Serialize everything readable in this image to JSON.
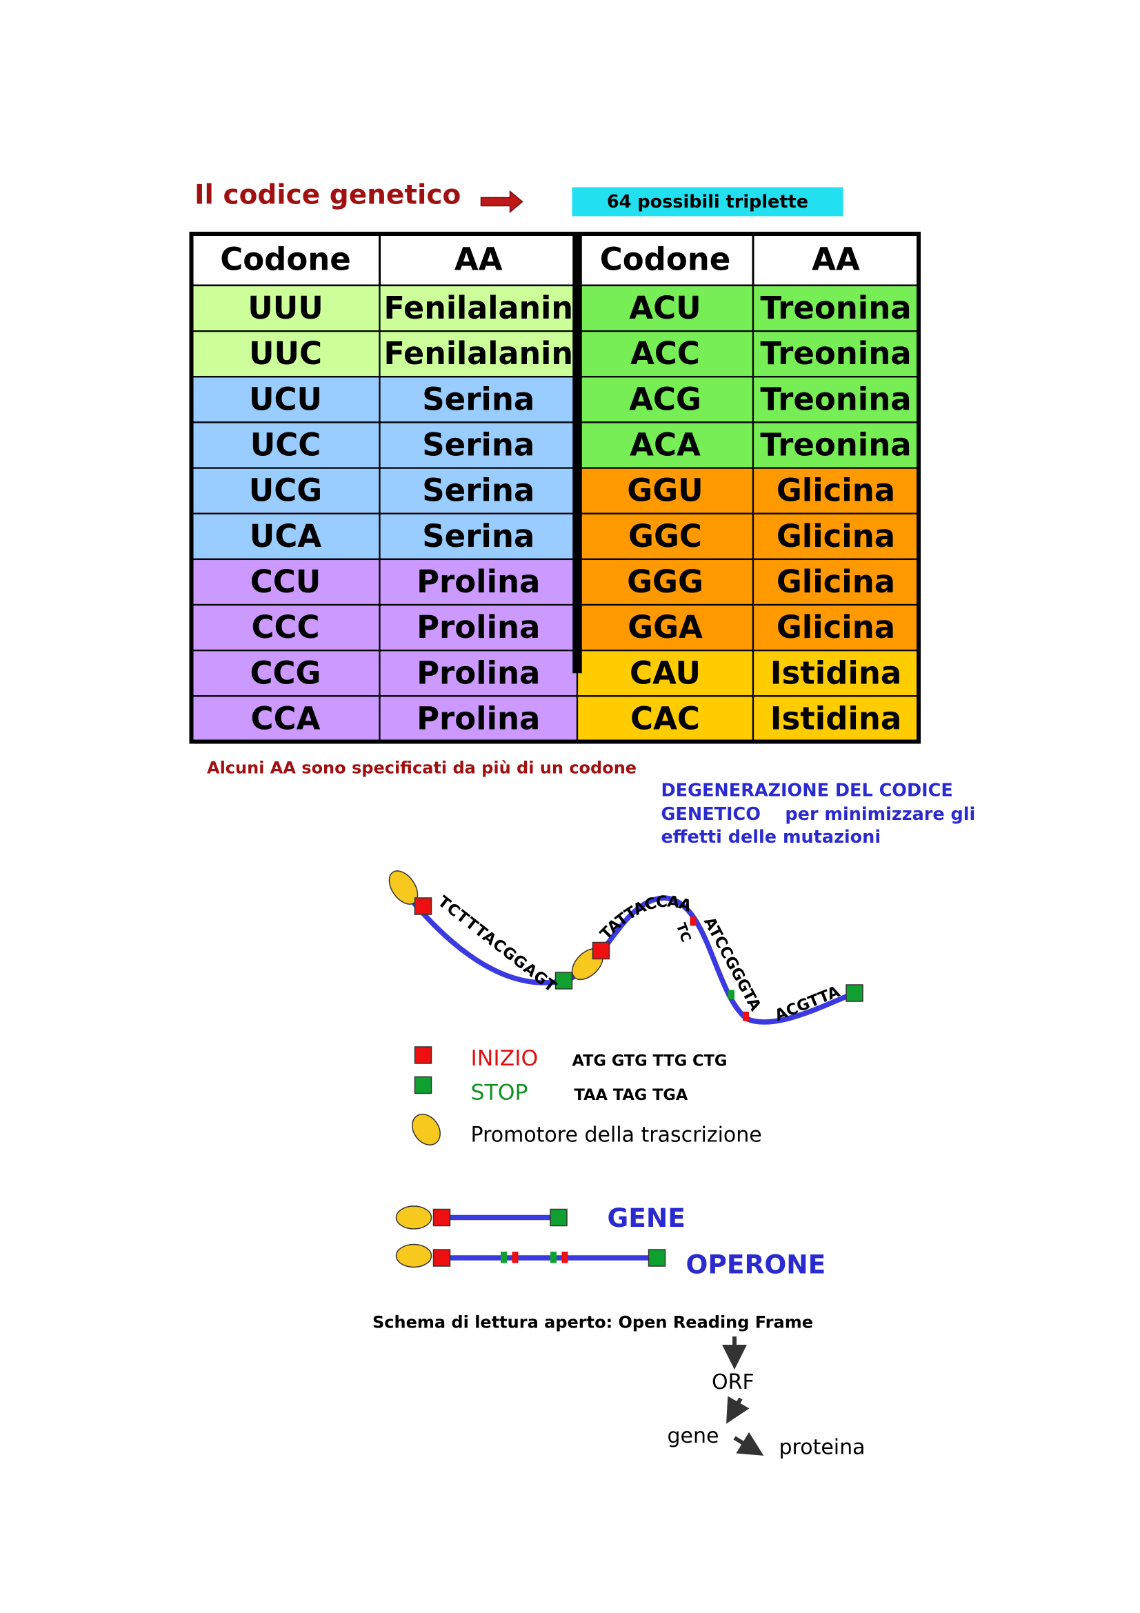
{
  "header": {
    "title": "Il codice genetico",
    "note": "64 possibili triplette"
  },
  "table": {
    "columns": [
      "Codone",
      "AA",
      "Codone",
      "AA"
    ],
    "rows": [
      [
        "UUU",
        "Fenilalanin",
        "ACU",
        "Treonina"
      ],
      [
        "UUC",
        "Fenilalanin",
        "ACC",
        "Treonina"
      ],
      [
        "UCU",
        "Serina",
        "ACG",
        "Treonina"
      ],
      [
        "UCC",
        "Serina",
        "ACA",
        "Treonina"
      ],
      [
        "UCG",
        "Serina",
        "GGU",
        "Glicina"
      ],
      [
        "UCA",
        "Serina",
        "GGC",
        "Glicina"
      ],
      [
        "CCU",
        "Prolina",
        "GGG",
        "Glicina"
      ],
      [
        "CCC",
        "Prolina",
        "GGA",
        "Glicina"
      ],
      [
        "CCG",
        "Prolina",
        "CAU",
        "Istidina"
      ],
      [
        "CCA",
        "Prolina",
        "CAC",
        "Istidina"
      ]
    ]
  },
  "caption": "Alcuni AA sono specificati da più di un codone",
  "degeneration": [
    "DEGENERAZIONE DEL CODICE",
    "GENETICO    per minimizzare gli",
    "effetti delle mutazioni"
  ],
  "diagram": {
    "sequences": [
      "TCTTTACGGAGT",
      "TATTACCAA",
      "TC",
      "ATCCGGGTA",
      "ACGTTA"
    ],
    "legend": [
      {
        "label": "INIZIO",
        "codons": "ATG GTG TTG CTG"
      },
      {
        "label": "STOP",
        "codons": "TAA TAG TGA"
      },
      {
        "label": "Promotore della trascrizione"
      }
    ],
    "gene": "GENE",
    "operon": "OPERONE",
    "orf_caption": "Schema di lettura aperto: Open Reading Frame",
    "flow": [
      "ORF",
      "gene",
      "proteina"
    ]
  }
}
